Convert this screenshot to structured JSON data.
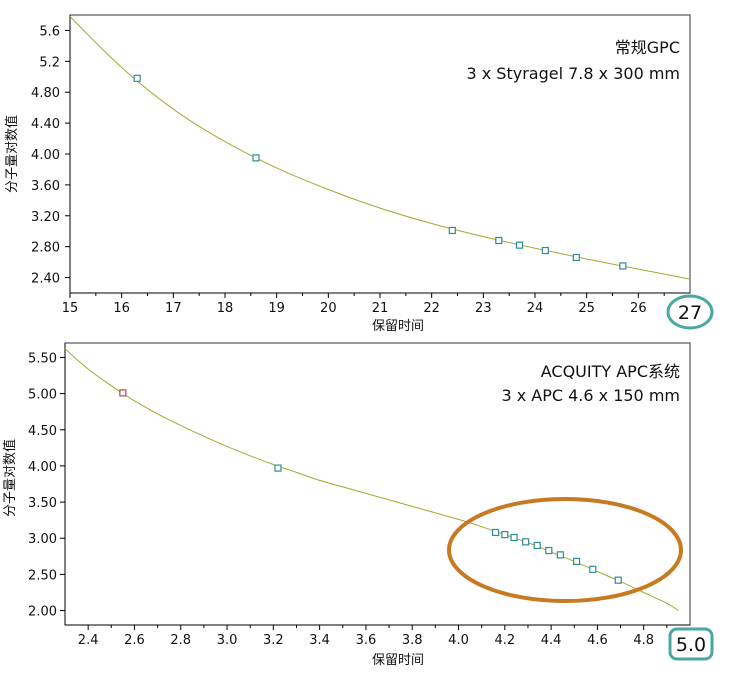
{
  "chart_data": [
    {
      "type": "scatter",
      "title_lines": [
        "常规GPC",
        "3 x Styragel 7.8 x 300 mm"
      ],
      "xlabel": "保留时间",
      "ylabel": "分子量对数值",
      "xlim": [
        15,
        27
      ],
      "ylim": [
        2.2,
        5.8
      ],
      "xticks": [
        "15",
        "16",
        "17",
        "18",
        "19",
        "20",
        "21",
        "22",
        "23",
        "24",
        "25",
        "26"
      ],
      "yticks": [
        "2.40",
        "2.80",
        "3.20",
        "3.60",
        "4.00",
        "4.40",
        "4.80",
        "5.2",
        "5.6"
      ],
      "ytick_values": [
        2.4,
        2.8,
        3.2,
        3.6,
        4.0,
        4.4,
        4.8,
        5.2,
        5.6
      ],
      "badge": "27",
      "series": [
        {
          "points": [
            {
              "x": 16.3,
              "y": 4.98,
              "color": "#2a8f96"
            },
            {
              "x": 18.6,
              "y": 3.95,
              "color": "#2a8f96"
            },
            {
              "x": 22.4,
              "y": 3.01,
              "color": "#2a8f96"
            },
            {
              "x": 23.3,
              "y": 2.88,
              "color": "#2a8f96"
            },
            {
              "x": 23.7,
              "y": 2.82,
              "color": "#2a8f96"
            },
            {
              "x": 24.2,
              "y": 2.75,
              "color": "#2a8f96"
            },
            {
              "x": 24.8,
              "y": 2.66,
              "color": "#2a8f96"
            },
            {
              "x": 25.7,
              "y": 2.55,
              "color": "#2a8f96"
            }
          ]
        }
      ],
      "fit_curve": [
        [
          15.0,
          5.78
        ],
        [
          16.0,
          5.12
        ],
        [
          17.0,
          4.58
        ],
        [
          18.0,
          4.16
        ],
        [
          19.0,
          3.82
        ],
        [
          20.0,
          3.54
        ],
        [
          21.0,
          3.3
        ],
        [
          22.0,
          3.1
        ],
        [
          23.0,
          2.93
        ],
        [
          24.0,
          2.78
        ],
        [
          25.0,
          2.64
        ],
        [
          26.0,
          2.51
        ],
        [
          27.0,
          2.38
        ]
      ],
      "curve_color": "#a8a830",
      "badge_color": "#4aa8a0"
    },
    {
      "type": "scatter",
      "title_lines": [
        "ACQUITY APC系统",
        "3 x APC 4.6 x 150 mm"
      ],
      "xlabel": "保留时间",
      "ylabel": "分子量对数值",
      "xlim": [
        2.3,
        5.0
      ],
      "ylim": [
        1.8,
        5.7
      ],
      "xticks": [
        "2.4",
        "2.6",
        "2.8",
        "3.0",
        "3.2",
        "3.4",
        "3.6",
        "3.8",
        "4.0",
        "4.2",
        "4.4",
        "4.6",
        "4.8"
      ],
      "yticks": [
        "2.00",
        "2.50",
        "3.00",
        "3.50",
        "4.00",
        "4.50",
        "5.00",
        "5.50"
      ],
      "ytick_values": [
        2.0,
        2.5,
        3.0,
        3.5,
        4.0,
        4.5,
        5.0,
        5.5
      ],
      "badge": "5.0",
      "series": [
        {
          "points": [
            {
              "x": 2.55,
              "y": 5.01,
              "color": "#c04060"
            },
            {
              "x": 3.22,
              "y": 3.97,
              "color": "#2a8f96"
            },
            {
              "x": 4.16,
              "y": 3.08,
              "color": "#2a8f96"
            },
            {
              "x": 4.2,
              "y": 3.05,
              "color": "#2a8f96"
            },
            {
              "x": 4.24,
              "y": 3.01,
              "color": "#2a8f96"
            },
            {
              "x": 4.29,
              "y": 2.95,
              "color": "#2a8f96"
            },
            {
              "x": 4.34,
              "y": 2.9,
              "color": "#2a8f96"
            },
            {
              "x": 4.39,
              "y": 2.83,
              "color": "#2a8f96"
            },
            {
              "x": 4.44,
              "y": 2.77,
              "color": "#2a8f96"
            },
            {
              "x": 4.51,
              "y": 2.68,
              "color": "#2a8f96"
            },
            {
              "x": 4.58,
              "y": 2.57,
              "color": "#2a8f96"
            },
            {
              "x": 4.69,
              "y": 2.42,
              "color": "#2a8f96"
            }
          ]
        }
      ],
      "fit_curve": [
        [
          2.3,
          5.62
        ],
        [
          2.4,
          5.34
        ],
        [
          2.5,
          5.11
        ],
        [
          2.6,
          4.9
        ],
        [
          2.7,
          4.72
        ],
        [
          2.8,
          4.56
        ],
        [
          2.9,
          4.41
        ],
        [
          3.0,
          4.27
        ],
        [
          3.1,
          4.14
        ],
        [
          3.2,
          4.02
        ],
        [
          3.3,
          3.91
        ],
        [
          3.4,
          3.8
        ],
        [
          3.5,
          3.71
        ],
        [
          3.6,
          3.62
        ],
        [
          3.7,
          3.53
        ],
        [
          3.8,
          3.44
        ],
        [
          3.9,
          3.35
        ],
        [
          4.0,
          3.26
        ],
        [
          4.1,
          3.16
        ],
        [
          4.2,
          3.05
        ],
        [
          4.3,
          2.94
        ],
        [
          4.4,
          2.81
        ],
        [
          4.5,
          2.68
        ],
        [
          4.6,
          2.54
        ],
        [
          4.7,
          2.4
        ],
        [
          4.8,
          2.25
        ],
        [
          4.9,
          2.1
        ],
        [
          4.95,
          2.0
        ]
      ],
      "curve_color": "#a8a830",
      "badge_color": "#4aa8a0",
      "highlight_color": "#c77a22"
    }
  ]
}
